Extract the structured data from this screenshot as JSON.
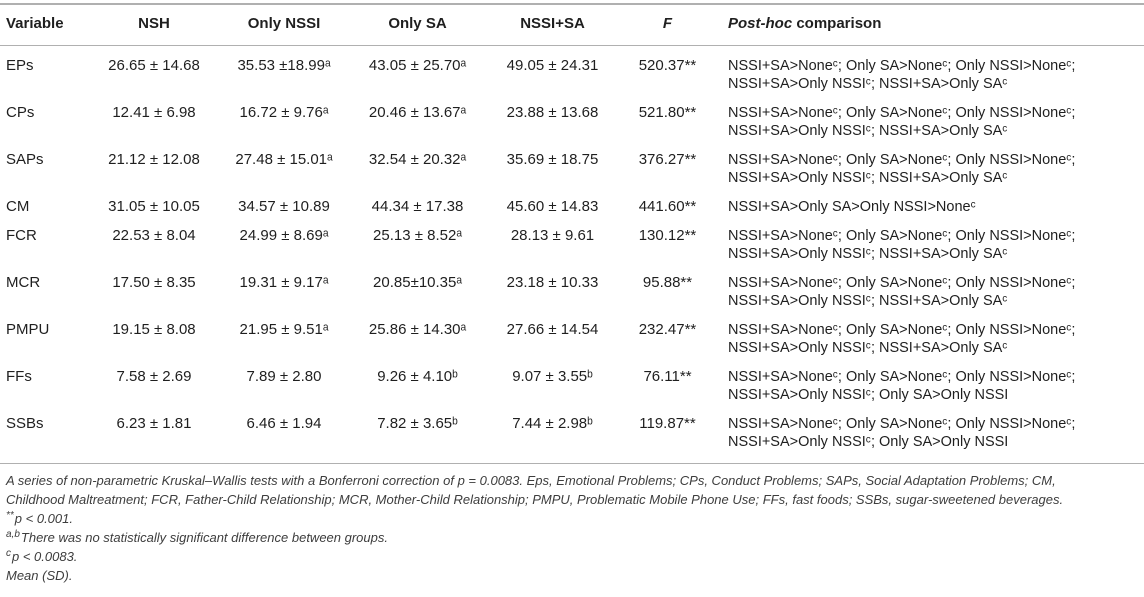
{
  "table": {
    "header": {
      "variable": "Variable",
      "nsh": "NSH",
      "only_nssi": "Only NSSI",
      "only_sa": "Only SA",
      "nssi_sa": "NSSI+SA",
      "f": "F",
      "posthoc_italic": "Post-hoc",
      "posthoc_rest": " comparison"
    },
    "rows": [
      {
        "variable": "EPs",
        "nsh": "26.65 ± 14.68",
        "only_nssi": "35.53 ±18.99ᵃ",
        "only_sa": "43.05 ± 25.70ᵃ",
        "nssi_sa": "49.05 ± 24.31",
        "f": "520.37**",
        "posthoc": "NSSI+SA>Noneᶜ; Only SA>Noneᶜ; Only NSSI>Noneᶜ;\nNSSI+SA>Only NSSIᶜ; NSSI+SA>Only SAᶜ"
      },
      {
        "variable": "CPs",
        "nsh": "12.41 ± 6.98",
        "only_nssi": "16.72 ± 9.76ᵃ",
        "only_sa": "20.46 ± 13.67ᵃ",
        "nssi_sa": "23.88 ± 13.68",
        "f": "521.80**",
        "posthoc": "NSSI+SA>Noneᶜ; Only SA>Noneᶜ; Only NSSI>Noneᶜ;\nNSSI+SA>Only NSSIᶜ; NSSI+SA>Only SAᶜ"
      },
      {
        "variable": "SAPs",
        "nsh": "21.12 ± 12.08",
        "only_nssi": "27.48 ± 15.01ᵃ",
        "only_sa": "32.54 ± 20.32ᵃ",
        "nssi_sa": "35.69 ± 18.75",
        "f": "376.27**",
        "posthoc": "NSSI+SA>Noneᶜ; Only SA>Noneᶜ; Only NSSI>Noneᶜ;\nNSSI+SA>Only NSSIᶜ; NSSI+SA>Only SAᶜ"
      },
      {
        "variable": "CM",
        "nsh": "31.05 ± 10.05",
        "only_nssi": "34.57 ± 10.89",
        "only_sa": "44.34 ± 17.38",
        "nssi_sa": "45.60 ± 14.83",
        "f": "441.60**",
        "posthoc": "NSSI+SA>Only SA>Only NSSI>Noneᶜ"
      },
      {
        "variable": "FCR",
        "nsh": "22.53 ± 8.04",
        "only_nssi": "24.99 ± 8.69ᵃ",
        "only_sa": "25.13 ± 8.52ᵃ",
        "nssi_sa": "28.13 ± 9.61",
        "f": "130.12**",
        "posthoc": "NSSI+SA>Noneᶜ; Only SA>Noneᶜ; Only NSSI>Noneᶜ;\nNSSI+SA>Only NSSIᶜ; NSSI+SA>Only SAᶜ"
      },
      {
        "variable": "MCR",
        "nsh": "17.50 ± 8.35",
        "only_nssi": "19.31 ± 9.17ᵃ",
        "only_sa": "20.85±10.35ᵃ",
        "nssi_sa": "23.18 ± 10.33",
        "f": "95.88**",
        "posthoc": "NSSI+SA>Noneᶜ; Only SA>Noneᶜ; Only NSSI>Noneᶜ;\nNSSI+SA>Only NSSIᶜ; NSSI+SA>Only SAᶜ"
      },
      {
        "variable": "PMPU",
        "nsh": "19.15 ± 8.08",
        "only_nssi": "21.95 ± 9.51ᵃ",
        "only_sa": "25.86 ± 14.30ᵃ",
        "nssi_sa": "27.66 ± 14.54",
        "f": "232.47**",
        "posthoc": "NSSI+SA>Noneᶜ; Only SA>Noneᶜ; Only NSSI>Noneᶜ;\nNSSI+SA>Only NSSIᶜ; NSSI+SA>Only SAᶜ"
      },
      {
        "variable": "FFs",
        "nsh": "7.58 ± 2.69",
        "only_nssi": "7.89 ± 2.80",
        "only_sa": "9.26 ± 4.10ᵇ",
        "nssi_sa": "9.07 ± 3.55ᵇ",
        "f": "76.11**",
        "posthoc": "NSSI+SA>Noneᶜ; Only SA>Noneᶜ; Only NSSI>Noneᶜ;\nNSSI+SA>Only NSSIᶜ; Only SA>Only NSSI"
      },
      {
        "variable": "SSBs",
        "nsh": "6.23 ± 1.81",
        "only_nssi": "6.46 ± 1.94",
        "only_sa": "7.82 ± 3.65ᵇ",
        "nssi_sa": "7.44 ± 2.98ᵇ",
        "f": "119.87**",
        "posthoc": "NSSI+SA>Noneᶜ; Only SA>Noneᶜ; Only NSSI>Noneᶜ;\nNSSI+SA>Only NSSIᶜ; Only SA>Only NSSI"
      }
    ]
  },
  "footnotes": [
    {
      "sup": "",
      "text": "A series of non-parametric Kruskal–Wallis tests with a Bonferroni correction of p = 0.0083. Eps, Emotional Problems; CPs, Conduct Problems; SAPs, Social Adaptation Problems; CM,"
    },
    {
      "sup": "",
      "text": "Childhood Maltreatment; FCR, Father-Child Relationship; MCR, Mother-Child Relationship; PMPU, Problematic Mobile Phone Use; FFs, fast foods; SSBs, sugar-sweetened beverages."
    },
    {
      "sup": "**",
      "text": "p < 0.001."
    },
    {
      "sup": "a,b",
      "text": "There was no statistically significant difference between groups."
    },
    {
      "sup": "c",
      "text": "p < 0.0083."
    },
    {
      "sup": "",
      "text": "Mean (SD)."
    }
  ],
  "colors": {
    "rule": "#b0b0b0",
    "body_text": "#1f1f1f",
    "footnote_text": "#3d3d3d"
  }
}
